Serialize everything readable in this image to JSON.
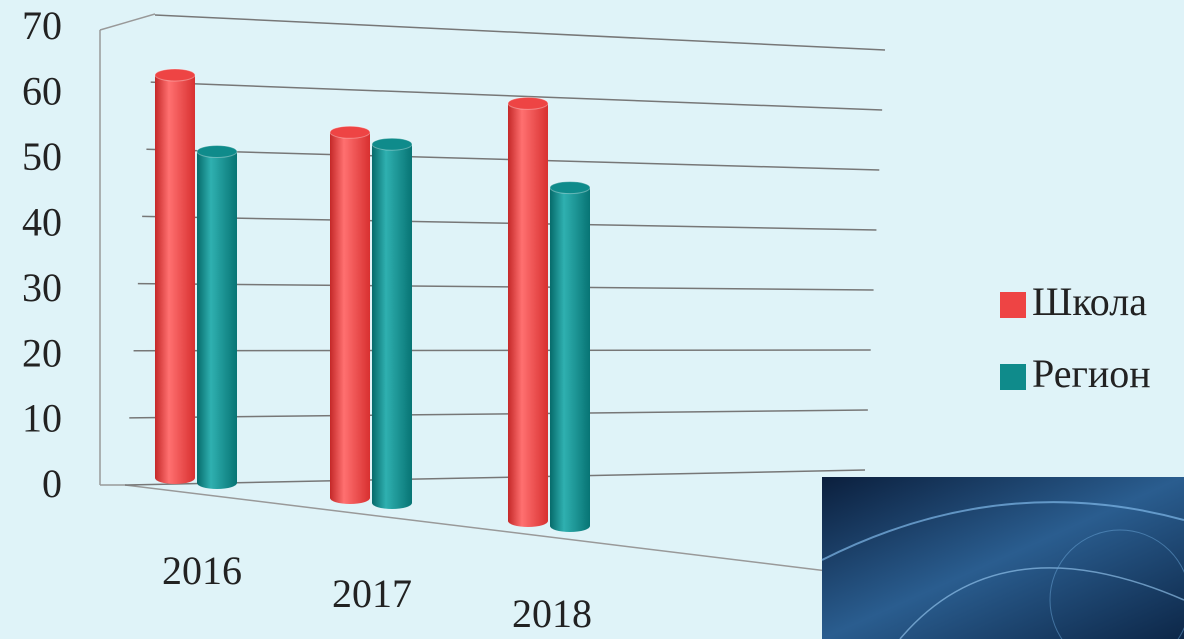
{
  "chart_data": {
    "type": "bar3d",
    "categories": [
      "2016",
      "2017",
      "2018"
    ],
    "series": [
      {
        "name": "Школа",
        "color": "#ee4444",
        "values": [
          62,
          53,
          58
        ]
      },
      {
        "name": "Регион",
        "color": "#0f8b8b",
        "values": [
          51,
          52,
          47
        ]
      }
    ],
    "ylim": [
      0,
      70
    ],
    "yticks": [
      0,
      10,
      20,
      30,
      40,
      50,
      60,
      70
    ],
    "grid": true,
    "legend": "right"
  }
}
